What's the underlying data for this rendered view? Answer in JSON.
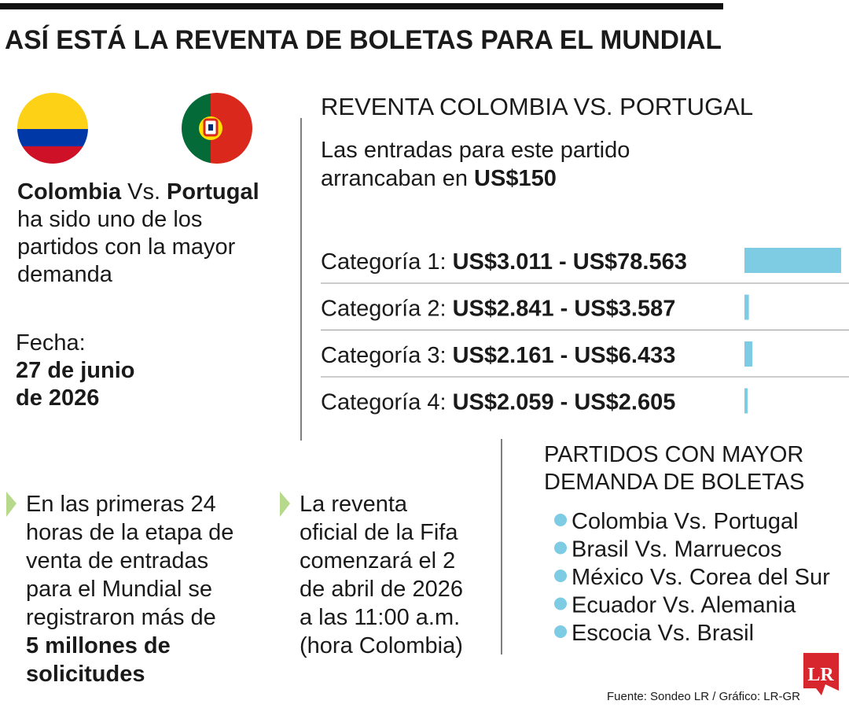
{
  "header": {
    "title": "ASÍ ESTÁ LA REVENTA DE BOLETAS PARA EL MUNDIAL"
  },
  "match": {
    "team1": "Colombia",
    "vs": "Vs.",
    "team2": "Portugal",
    "lines": [
      "ha sido uno de los",
      "partidos con la mayor",
      "demanda"
    ],
    "date_label": "Fecha:",
    "date_lines": [
      "27 de junio",
      "de 2026"
    ]
  },
  "resale": {
    "title": "REVENTA COLOMBIA VS. PORTUGAL",
    "intro": [
      "Las entradas para este partido",
      "arrancaban en"
    ],
    "intro_price": "US$150",
    "rows": [
      {
        "label": "Categoría 1:",
        "range": "US$3.011 - US$78.563",
        "max": 78563
      },
      {
        "label": "Categoría 2:",
        "range": "US$2.841 - US$3.587",
        "max": 3587
      },
      {
        "label": "Categoría 3:",
        "range": "US$2.161 - US$6.433",
        "max": 6433
      },
      {
        "label": "Categoría 4:",
        "range": "US$2.059 - US$2.605",
        "max": 2605
      }
    ]
  },
  "notes": [
    {
      "lines": [
        "En las primeras 24",
        "horas de la etapa de",
        "venta de entradas",
        "para el Mundial se",
        "registraron más de"
      ],
      "bold_lines": [
        "5 millones de",
        "solicitudes"
      ]
    },
    {
      "lines": [
        "La reventa",
        "oficial de la Fifa",
        "comenzará el 2",
        "de abril de 2026",
        "a las 11:00 a.m.",
        "(hora Colombia)"
      ],
      "bold_lines": []
    }
  ],
  "top_matches": {
    "title_lines": [
      "PARTIDOS CON MAYOR",
      "DEMANDA DE BOLETAS"
    ],
    "items": [
      "Colombia Vs. Portugal",
      "Brasil Vs. Marruecos",
      "México Vs. Corea del Sur",
      "Ecuador Vs. Alemania",
      "Escocia Vs. Brasil"
    ]
  },
  "source": "Fuente: Sondeo LR / Gráfico: LR-GR",
  "logo": "LR"
}
